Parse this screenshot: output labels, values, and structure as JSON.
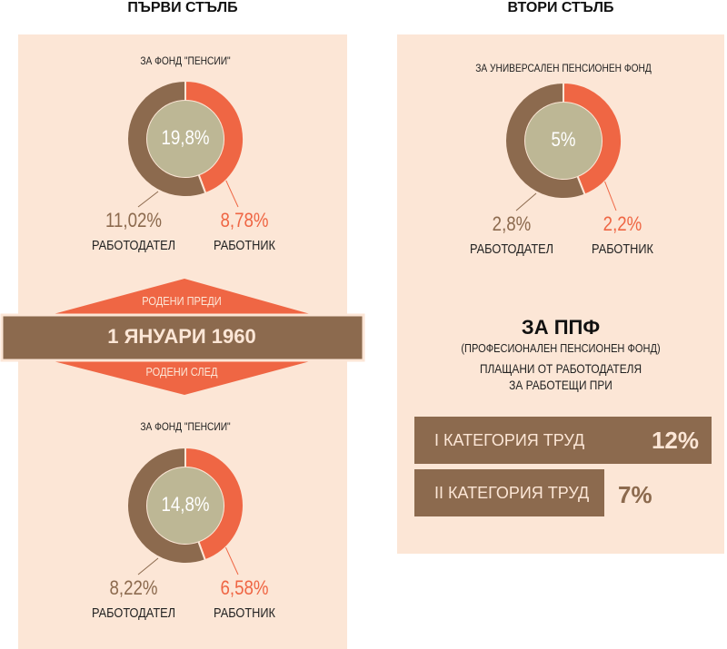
{
  "colors": {
    "employer": "#8c6a4e",
    "worker": "#ef6644",
    "center": "#bdb795",
    "panel": "#fce6d6"
  },
  "first_pillar": {
    "title": "ПЪРВИ СТЪЛБ",
    "ribbon": {
      "before": "РОДЕНИ ПРЕДИ",
      "date": "1 ЯНУАРИ 1960",
      "after": "РОДЕНИ СЛЕД"
    }
  },
  "second_pillar": {
    "title": "ВТОРИ СТЪЛБ",
    "ppf": {
      "title": "ЗА ППФ",
      "subtitle": "(ПРОФЕСИОНАЛЕН ПЕНСИОНЕН ФОНД)",
      "line1": "ПЛАЩАНИ ОТ РАБОТОДАТЕЛЯ",
      "line2": "ЗА РАБОТЕЩИ ПРИ",
      "bars": [
        {
          "label": "I КАТЕГОРИЯ ТРУД",
          "value_label": "12%",
          "value": 12
        },
        {
          "label": "II КАТЕГОРИЯ ТРУД",
          "value_label": "7%",
          "value": 7
        }
      ]
    }
  },
  "chart_data": [
    {
      "type": "pie",
      "title": "ЗА ФОНД \"ПЕНСИИ\"",
      "total_label": "19,8%",
      "total": 19.8,
      "slices": [
        {
          "name": "РАБОТОДАТЕЛ",
          "value": 11.02,
          "label": "11,02%"
        },
        {
          "name": "РАБОТНИК",
          "value": 8.78,
          "label": "8,78%"
        }
      ]
    },
    {
      "type": "pie",
      "title": "ЗА УНИВЕРСАЛЕН ПЕНСИОНЕН ФОНД",
      "total_label": "5%",
      "total": 5,
      "slices": [
        {
          "name": "РАБОТОДАТЕЛ",
          "value": 2.8,
          "label": "2,8%"
        },
        {
          "name": "РАБОТНИК",
          "value": 2.2,
          "label": "2,2%"
        }
      ]
    },
    {
      "type": "pie",
      "title": "ЗА ФОНД \"ПЕНСИИ\"",
      "total_label": "14,8%",
      "total": 14.8,
      "slices": [
        {
          "name": "РАБОТОДАТЕЛ",
          "value": 8.22,
          "label": "8,22%"
        },
        {
          "name": "РАБОТНИК",
          "value": 6.58,
          "label": "6,58%"
        }
      ]
    }
  ]
}
